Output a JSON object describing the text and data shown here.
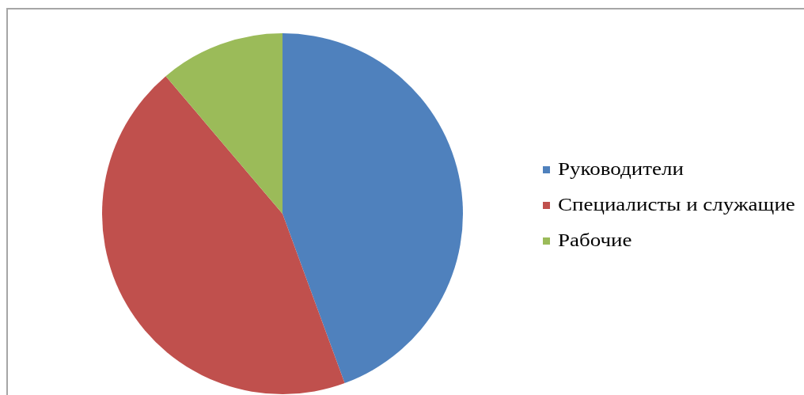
{
  "chart_data": {
    "type": "pie",
    "categories": [
      "Руководители",
      "Специалисты и служащие",
      "Рабочие"
    ],
    "values": [
      44.4,
      44.4,
      11.2
    ],
    "colors": [
      "#4f81bd",
      "#c0504d",
      "#9bbb59"
    ],
    "legend": "right"
  }
}
